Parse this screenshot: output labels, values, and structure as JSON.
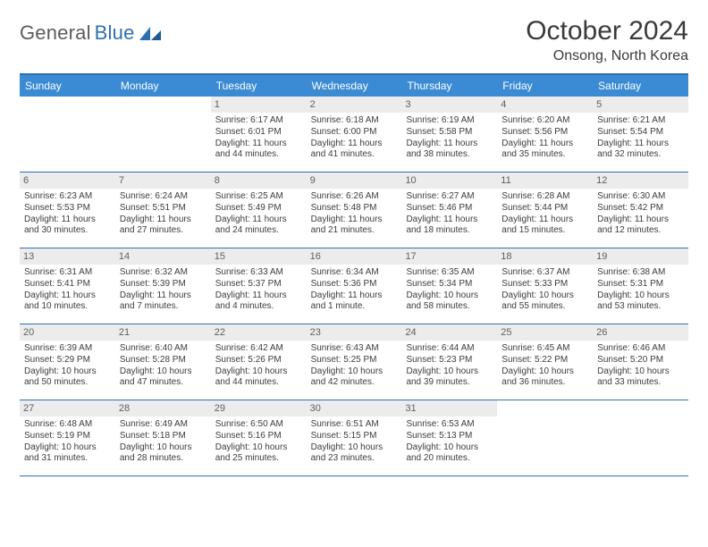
{
  "logo": {
    "text_gray": "General",
    "text_blue": "Blue"
  },
  "title": {
    "month": "October 2024",
    "location": "Onsong, North Korea"
  },
  "colors": {
    "header_blue": "#3b8bd4",
    "rule_blue": "#2d6fb5",
    "daynum_bg": "#ececec",
    "text": "#3a3a3a"
  },
  "day_names": [
    "Sunday",
    "Monday",
    "Tuesday",
    "Wednesday",
    "Thursday",
    "Friday",
    "Saturday"
  ],
  "weeks": [
    [
      {
        "n": "",
        "sr": "",
        "ss": "",
        "dl": ""
      },
      {
        "n": "",
        "sr": "",
        "ss": "",
        "dl": ""
      },
      {
        "n": "1",
        "sr": "Sunrise: 6:17 AM",
        "ss": "Sunset: 6:01 PM",
        "dl": "Daylight: 11 hours and 44 minutes."
      },
      {
        "n": "2",
        "sr": "Sunrise: 6:18 AM",
        "ss": "Sunset: 6:00 PM",
        "dl": "Daylight: 11 hours and 41 minutes."
      },
      {
        "n": "3",
        "sr": "Sunrise: 6:19 AM",
        "ss": "Sunset: 5:58 PM",
        "dl": "Daylight: 11 hours and 38 minutes."
      },
      {
        "n": "4",
        "sr": "Sunrise: 6:20 AM",
        "ss": "Sunset: 5:56 PM",
        "dl": "Daylight: 11 hours and 35 minutes."
      },
      {
        "n": "5",
        "sr": "Sunrise: 6:21 AM",
        "ss": "Sunset: 5:54 PM",
        "dl": "Daylight: 11 hours and 32 minutes."
      }
    ],
    [
      {
        "n": "6",
        "sr": "Sunrise: 6:23 AM",
        "ss": "Sunset: 5:53 PM",
        "dl": "Daylight: 11 hours and 30 minutes."
      },
      {
        "n": "7",
        "sr": "Sunrise: 6:24 AM",
        "ss": "Sunset: 5:51 PM",
        "dl": "Daylight: 11 hours and 27 minutes."
      },
      {
        "n": "8",
        "sr": "Sunrise: 6:25 AM",
        "ss": "Sunset: 5:49 PM",
        "dl": "Daylight: 11 hours and 24 minutes."
      },
      {
        "n": "9",
        "sr": "Sunrise: 6:26 AM",
        "ss": "Sunset: 5:48 PM",
        "dl": "Daylight: 11 hours and 21 minutes."
      },
      {
        "n": "10",
        "sr": "Sunrise: 6:27 AM",
        "ss": "Sunset: 5:46 PM",
        "dl": "Daylight: 11 hours and 18 minutes."
      },
      {
        "n": "11",
        "sr": "Sunrise: 6:28 AM",
        "ss": "Sunset: 5:44 PM",
        "dl": "Daylight: 11 hours and 15 minutes."
      },
      {
        "n": "12",
        "sr": "Sunrise: 6:30 AM",
        "ss": "Sunset: 5:42 PM",
        "dl": "Daylight: 11 hours and 12 minutes."
      }
    ],
    [
      {
        "n": "13",
        "sr": "Sunrise: 6:31 AM",
        "ss": "Sunset: 5:41 PM",
        "dl": "Daylight: 11 hours and 10 minutes."
      },
      {
        "n": "14",
        "sr": "Sunrise: 6:32 AM",
        "ss": "Sunset: 5:39 PM",
        "dl": "Daylight: 11 hours and 7 minutes."
      },
      {
        "n": "15",
        "sr": "Sunrise: 6:33 AM",
        "ss": "Sunset: 5:37 PM",
        "dl": "Daylight: 11 hours and 4 minutes."
      },
      {
        "n": "16",
        "sr": "Sunrise: 6:34 AM",
        "ss": "Sunset: 5:36 PM",
        "dl": "Daylight: 11 hours and 1 minute."
      },
      {
        "n": "17",
        "sr": "Sunrise: 6:35 AM",
        "ss": "Sunset: 5:34 PM",
        "dl": "Daylight: 10 hours and 58 minutes."
      },
      {
        "n": "18",
        "sr": "Sunrise: 6:37 AM",
        "ss": "Sunset: 5:33 PM",
        "dl": "Daylight: 10 hours and 55 minutes."
      },
      {
        "n": "19",
        "sr": "Sunrise: 6:38 AM",
        "ss": "Sunset: 5:31 PM",
        "dl": "Daylight: 10 hours and 53 minutes."
      }
    ],
    [
      {
        "n": "20",
        "sr": "Sunrise: 6:39 AM",
        "ss": "Sunset: 5:29 PM",
        "dl": "Daylight: 10 hours and 50 minutes."
      },
      {
        "n": "21",
        "sr": "Sunrise: 6:40 AM",
        "ss": "Sunset: 5:28 PM",
        "dl": "Daylight: 10 hours and 47 minutes."
      },
      {
        "n": "22",
        "sr": "Sunrise: 6:42 AM",
        "ss": "Sunset: 5:26 PM",
        "dl": "Daylight: 10 hours and 44 minutes."
      },
      {
        "n": "23",
        "sr": "Sunrise: 6:43 AM",
        "ss": "Sunset: 5:25 PM",
        "dl": "Daylight: 10 hours and 42 minutes."
      },
      {
        "n": "24",
        "sr": "Sunrise: 6:44 AM",
        "ss": "Sunset: 5:23 PM",
        "dl": "Daylight: 10 hours and 39 minutes."
      },
      {
        "n": "25",
        "sr": "Sunrise: 6:45 AM",
        "ss": "Sunset: 5:22 PM",
        "dl": "Daylight: 10 hours and 36 minutes."
      },
      {
        "n": "26",
        "sr": "Sunrise: 6:46 AM",
        "ss": "Sunset: 5:20 PM",
        "dl": "Daylight: 10 hours and 33 minutes."
      }
    ],
    [
      {
        "n": "27",
        "sr": "Sunrise: 6:48 AM",
        "ss": "Sunset: 5:19 PM",
        "dl": "Daylight: 10 hours and 31 minutes."
      },
      {
        "n": "28",
        "sr": "Sunrise: 6:49 AM",
        "ss": "Sunset: 5:18 PM",
        "dl": "Daylight: 10 hours and 28 minutes."
      },
      {
        "n": "29",
        "sr": "Sunrise: 6:50 AM",
        "ss": "Sunset: 5:16 PM",
        "dl": "Daylight: 10 hours and 25 minutes."
      },
      {
        "n": "30",
        "sr": "Sunrise: 6:51 AM",
        "ss": "Sunset: 5:15 PM",
        "dl": "Daylight: 10 hours and 23 minutes."
      },
      {
        "n": "31",
        "sr": "Sunrise: 6:53 AM",
        "ss": "Sunset: 5:13 PM",
        "dl": "Daylight: 10 hours and 20 minutes."
      },
      {
        "n": "",
        "sr": "",
        "ss": "",
        "dl": ""
      },
      {
        "n": "",
        "sr": "",
        "ss": "",
        "dl": ""
      }
    ]
  ]
}
